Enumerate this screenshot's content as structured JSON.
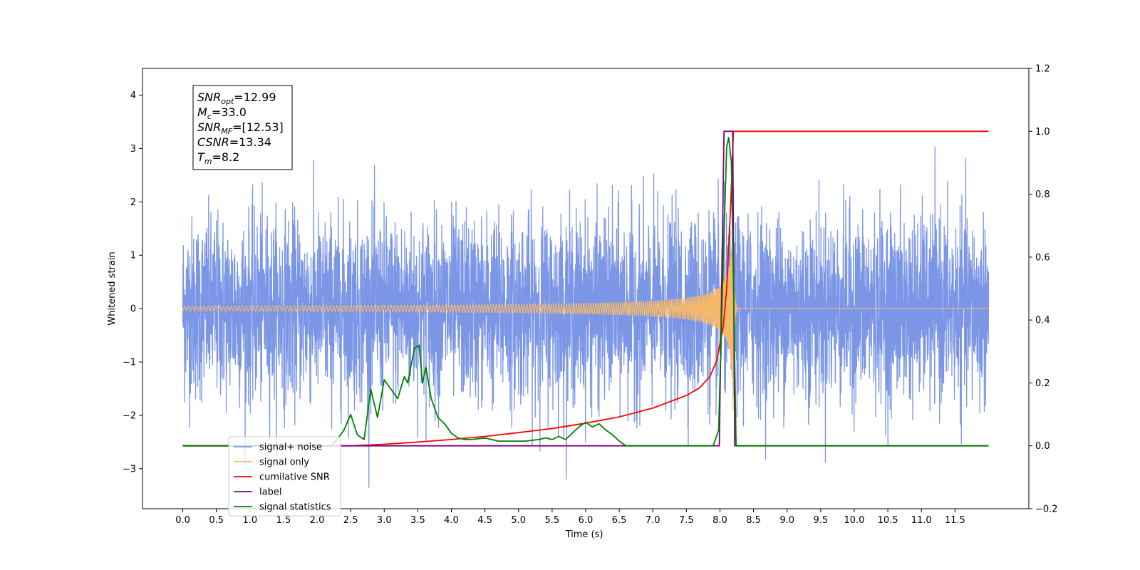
{
  "chart_data": {
    "type": "line",
    "xlabel": "Time (s)",
    "ylabel": "Whitened strain",
    "xlim": [
      -0.6,
      12.6
    ],
    "ylim": [
      -3.75,
      4.5
    ],
    "y2lim": [
      -0.2,
      1.2
    ],
    "x_ticks": [
      "0.0",
      "0.5",
      "1.0",
      "1.5",
      "2.0",
      "2.5",
      "3.0",
      "3.5",
      "4.0",
      "4.5",
      "5.0",
      "5.5",
      "6.0",
      "6.5",
      "7.0",
      "7.5",
      "8.0",
      "8.5",
      "9.0",
      "9.5",
      "10.0",
      "10.5",
      "11.0",
      "11.5"
    ],
    "y_ticks": [
      "4",
      "3",
      "2",
      "1",
      "0",
      "−1",
      "−2",
      "−3"
    ],
    "y2_ticks": [
      "1.2",
      "1.0",
      "0.8",
      "0.6",
      "0.4",
      "0.2",
      "0.0",
      "−0.2"
    ],
    "grid": false,
    "legend_position": "lower-left",
    "annotation": {
      "lines": [
        {
          "sym": "SNR",
          "sub": "opt",
          "val": "=12.99"
        },
        {
          "sym": "M",
          "sub": "c",
          "val": "=33.0"
        },
        {
          "sym": "SNR",
          "sub": "MF",
          "val": "=[12.53]"
        },
        {
          "sym": "CSNR",
          "sub": "",
          "val": "=13.34"
        },
        {
          "sym": "T",
          "sub": "m",
          "val": "=8.2"
        }
      ]
    },
    "series": [
      {
        "name": "signal+ noise",
        "color": "#7b96e6",
        "axis": "left",
        "kind": "noise",
        "x_range": [
          0.0,
          12.0
        ],
        "std": 0.85,
        "y_range": [
          -3.35,
          3.5
        ]
      },
      {
        "name": "signal only",
        "color": "#f5b96b",
        "axis": "left",
        "kind": "chirp",
        "x_range": [
          0.0,
          12.0
        ],
        "merger_time": 8.2,
        "peak_amplitude": 2.6
      },
      {
        "name": "cumilative SNR",
        "color": "#ff0000",
        "axis": "right",
        "x": [
          0.0,
          2.5,
          3.0,
          3.5,
          4.0,
          4.5,
          5.0,
          5.5,
          6.0,
          6.5,
          7.0,
          7.5,
          7.7,
          7.85,
          7.95,
          8.05,
          8.1,
          8.15,
          8.18,
          8.2,
          12.0
        ],
        "y": [
          0.0,
          0.0,
          0.005,
          0.012,
          0.02,
          0.03,
          0.042,
          0.055,
          0.072,
          0.092,
          0.12,
          0.16,
          0.185,
          0.22,
          0.27,
          0.38,
          0.5,
          0.72,
          0.88,
          1.0,
          1.0
        ]
      },
      {
        "name": "label",
        "color": "#800080",
        "axis": "right",
        "x": [
          0.0,
          7.99,
          8.06,
          8.19,
          8.22,
          8.25,
          12.0
        ],
        "y": [
          0.0,
          0.0,
          1.0,
          1.0,
          0.0,
          0.0,
          0.0
        ]
      },
      {
        "name": "signal statistics",
        "color": "#008000",
        "axis": "right",
        "x": [
          0.0,
          2.2,
          2.3,
          2.4,
          2.5,
          2.6,
          2.7,
          2.8,
          2.9,
          3.0,
          3.1,
          3.2,
          3.3,
          3.35,
          3.45,
          3.52,
          3.57,
          3.62,
          3.7,
          3.8,
          3.9,
          4.0,
          4.1,
          4.2,
          4.3,
          4.5,
          4.7,
          4.9,
          5.1,
          5.3,
          5.4,
          5.5,
          5.6,
          5.7,
          5.8,
          5.9,
          6.0,
          6.1,
          6.2,
          6.3,
          6.4,
          6.5,
          6.6,
          7.0,
          7.5,
          7.9,
          7.98,
          8.05,
          8.1,
          8.13,
          8.17,
          8.21,
          8.24,
          12.0
        ],
        "y": [
          0.0,
          0.0,
          0.02,
          0.05,
          0.1,
          0.035,
          0.02,
          0.18,
          0.09,
          0.21,
          0.18,
          0.15,
          0.22,
          0.2,
          0.31,
          0.32,
          0.2,
          0.25,
          0.15,
          0.09,
          0.07,
          0.04,
          0.025,
          0.02,
          0.02,
          0.025,
          0.015,
          0.015,
          0.015,
          0.02,
          0.025,
          0.02,
          0.03,
          0.02,
          0.04,
          0.06,
          0.075,
          0.06,
          0.07,
          0.05,
          0.035,
          0.015,
          0.0,
          0.0,
          0.0,
          0.0,
          0.05,
          0.6,
          0.95,
          0.98,
          0.9,
          0.4,
          0.0,
          0.0
        ]
      }
    ]
  }
}
